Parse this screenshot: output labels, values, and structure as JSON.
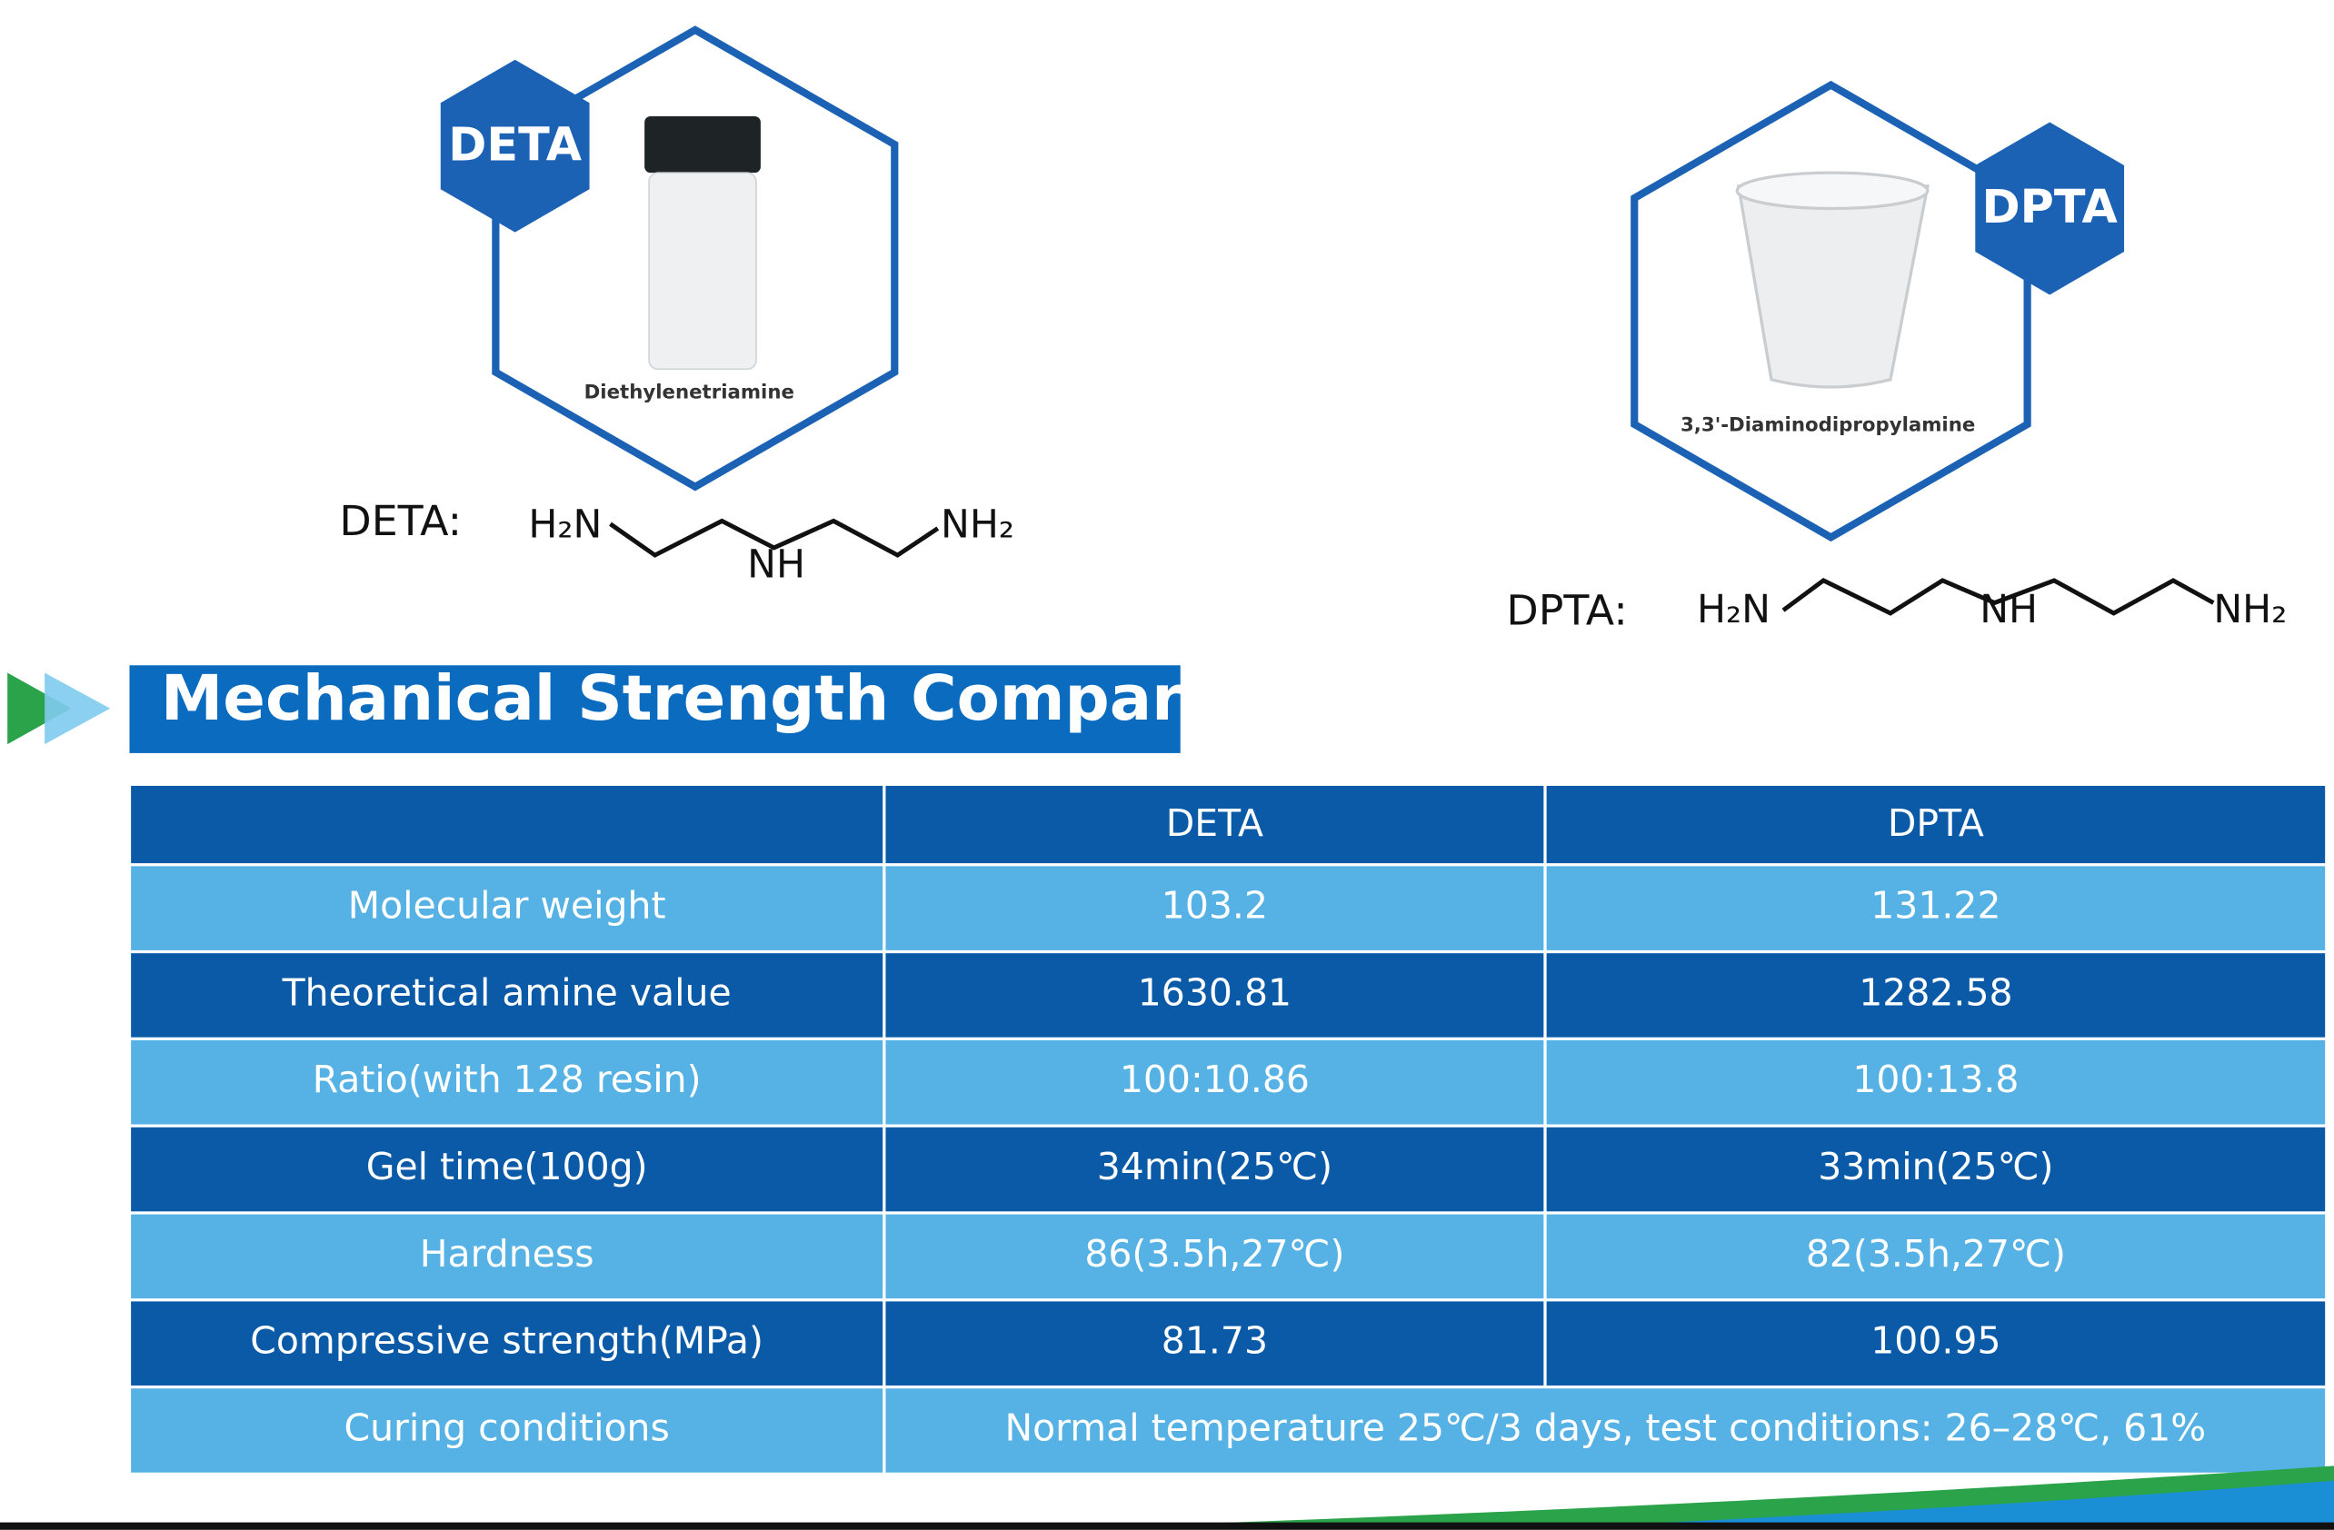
{
  "products": [
    {
      "badge": "DETA",
      "image_label": "Diethylenetriamine",
      "formula_label": "DETA:",
      "formula": [
        "H₂N",
        "NH",
        "NH₂"
      ]
    },
    {
      "badge": "DPTA",
      "image_label": "3,3'-Diaminodipropylamine",
      "formula_label": "DPTA:",
      "formula": [
        "H₂N",
        "NH",
        "NH₂"
      ]
    }
  ],
  "section_title": "Mechanical Strength Compare",
  "table": {
    "header": [
      "DETA",
      "DPTA"
    ],
    "rows": [
      [
        "Molecular weight",
        "103.2",
        "131.22"
      ],
      [
        "Theoretical amine value",
        "1630.81",
        "1282.58"
      ],
      [
        "Ratio(with 128 resin)",
        "100:10.86",
        "100:13.8"
      ],
      [
        "Gel time(100g)",
        "34min(25℃)",
        "33min(25℃)"
      ],
      [
        "Hardness",
        "86(3.5h,27℃)",
        "82(3.5h,27℃)"
      ],
      [
        "Compressive strength(MPa)",
        "81.73",
        "100.95"
      ],
      [
        "Curing conditions",
        "Normal temperature 25℃/3 days, test conditions: 26–28℃, 61%"
      ]
    ]
  }
}
